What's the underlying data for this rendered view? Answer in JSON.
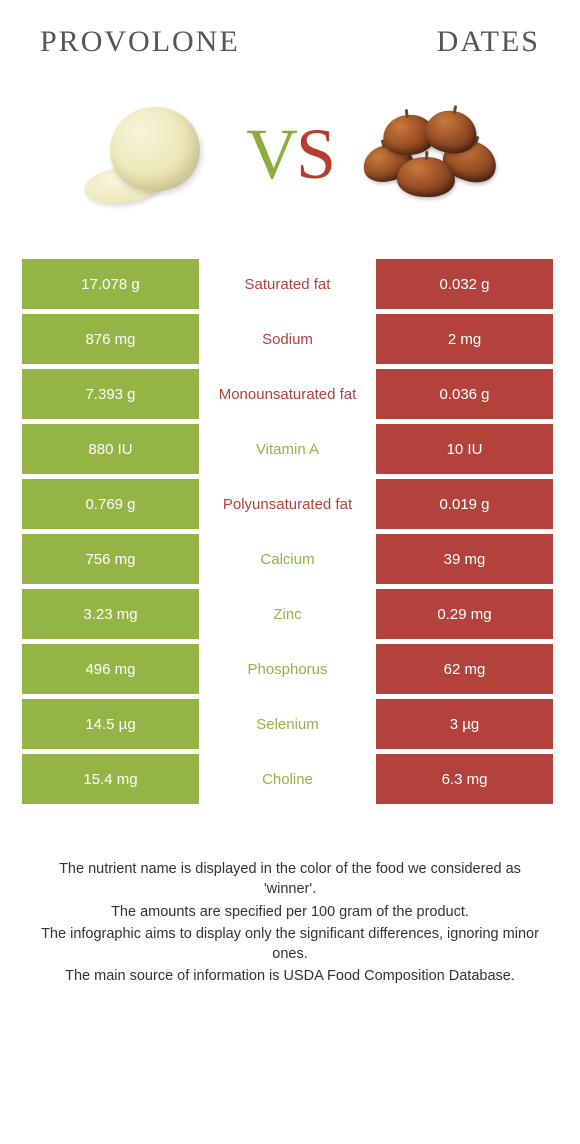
{
  "titles": {
    "left": "Provolone",
    "right": "Dates"
  },
  "vs": {
    "v": "V",
    "s": "S"
  },
  "colors": {
    "left": "#94b446",
    "right": "#b2423b",
    "mid_bg": "#ffffff",
    "label_left": "#b2423b",
    "label_right": "#94b446",
    "cell_text": "#ffffff"
  },
  "rows": [
    {
      "left": "17.078 g",
      "label": "Saturated fat",
      "right": "0.032 g",
      "winner": "left"
    },
    {
      "left": "876 mg",
      "label": "Sodium",
      "right": "2 mg",
      "winner": "left"
    },
    {
      "left": "7.393 g",
      "label": "Monounsaturated fat",
      "right": "0.036 g",
      "winner": "left"
    },
    {
      "left": "880 IU",
      "label": "Vitamin A",
      "right": "10 IU",
      "winner": "right"
    },
    {
      "left": "0.769 g",
      "label": "Polyunsaturated fat",
      "right": "0.019 g",
      "winner": "left"
    },
    {
      "left": "756 mg",
      "label": "Calcium",
      "right": "39 mg",
      "winner": "right"
    },
    {
      "left": "3.23 mg",
      "label": "Zinc",
      "right": "0.29 mg",
      "winner": "right"
    },
    {
      "left": "496 mg",
      "label": "Phosphorus",
      "right": "62 mg",
      "winner": "right"
    },
    {
      "left": "14.5 µg",
      "label": "Selenium",
      "right": "3 µg",
      "winner": "right"
    },
    {
      "left": "15.4 mg",
      "label": "Choline",
      "right": "6.3 mg",
      "winner": "right"
    }
  ],
  "footer": [
    "The nutrient name is displayed in the color of the food we considered as 'winner'.",
    "The amounts are specified per 100 gram of the product.",
    "The infographic aims to display only the significant differences, ignoring minor ones.",
    "The main source of information is USDA Food Composition Database."
  ]
}
